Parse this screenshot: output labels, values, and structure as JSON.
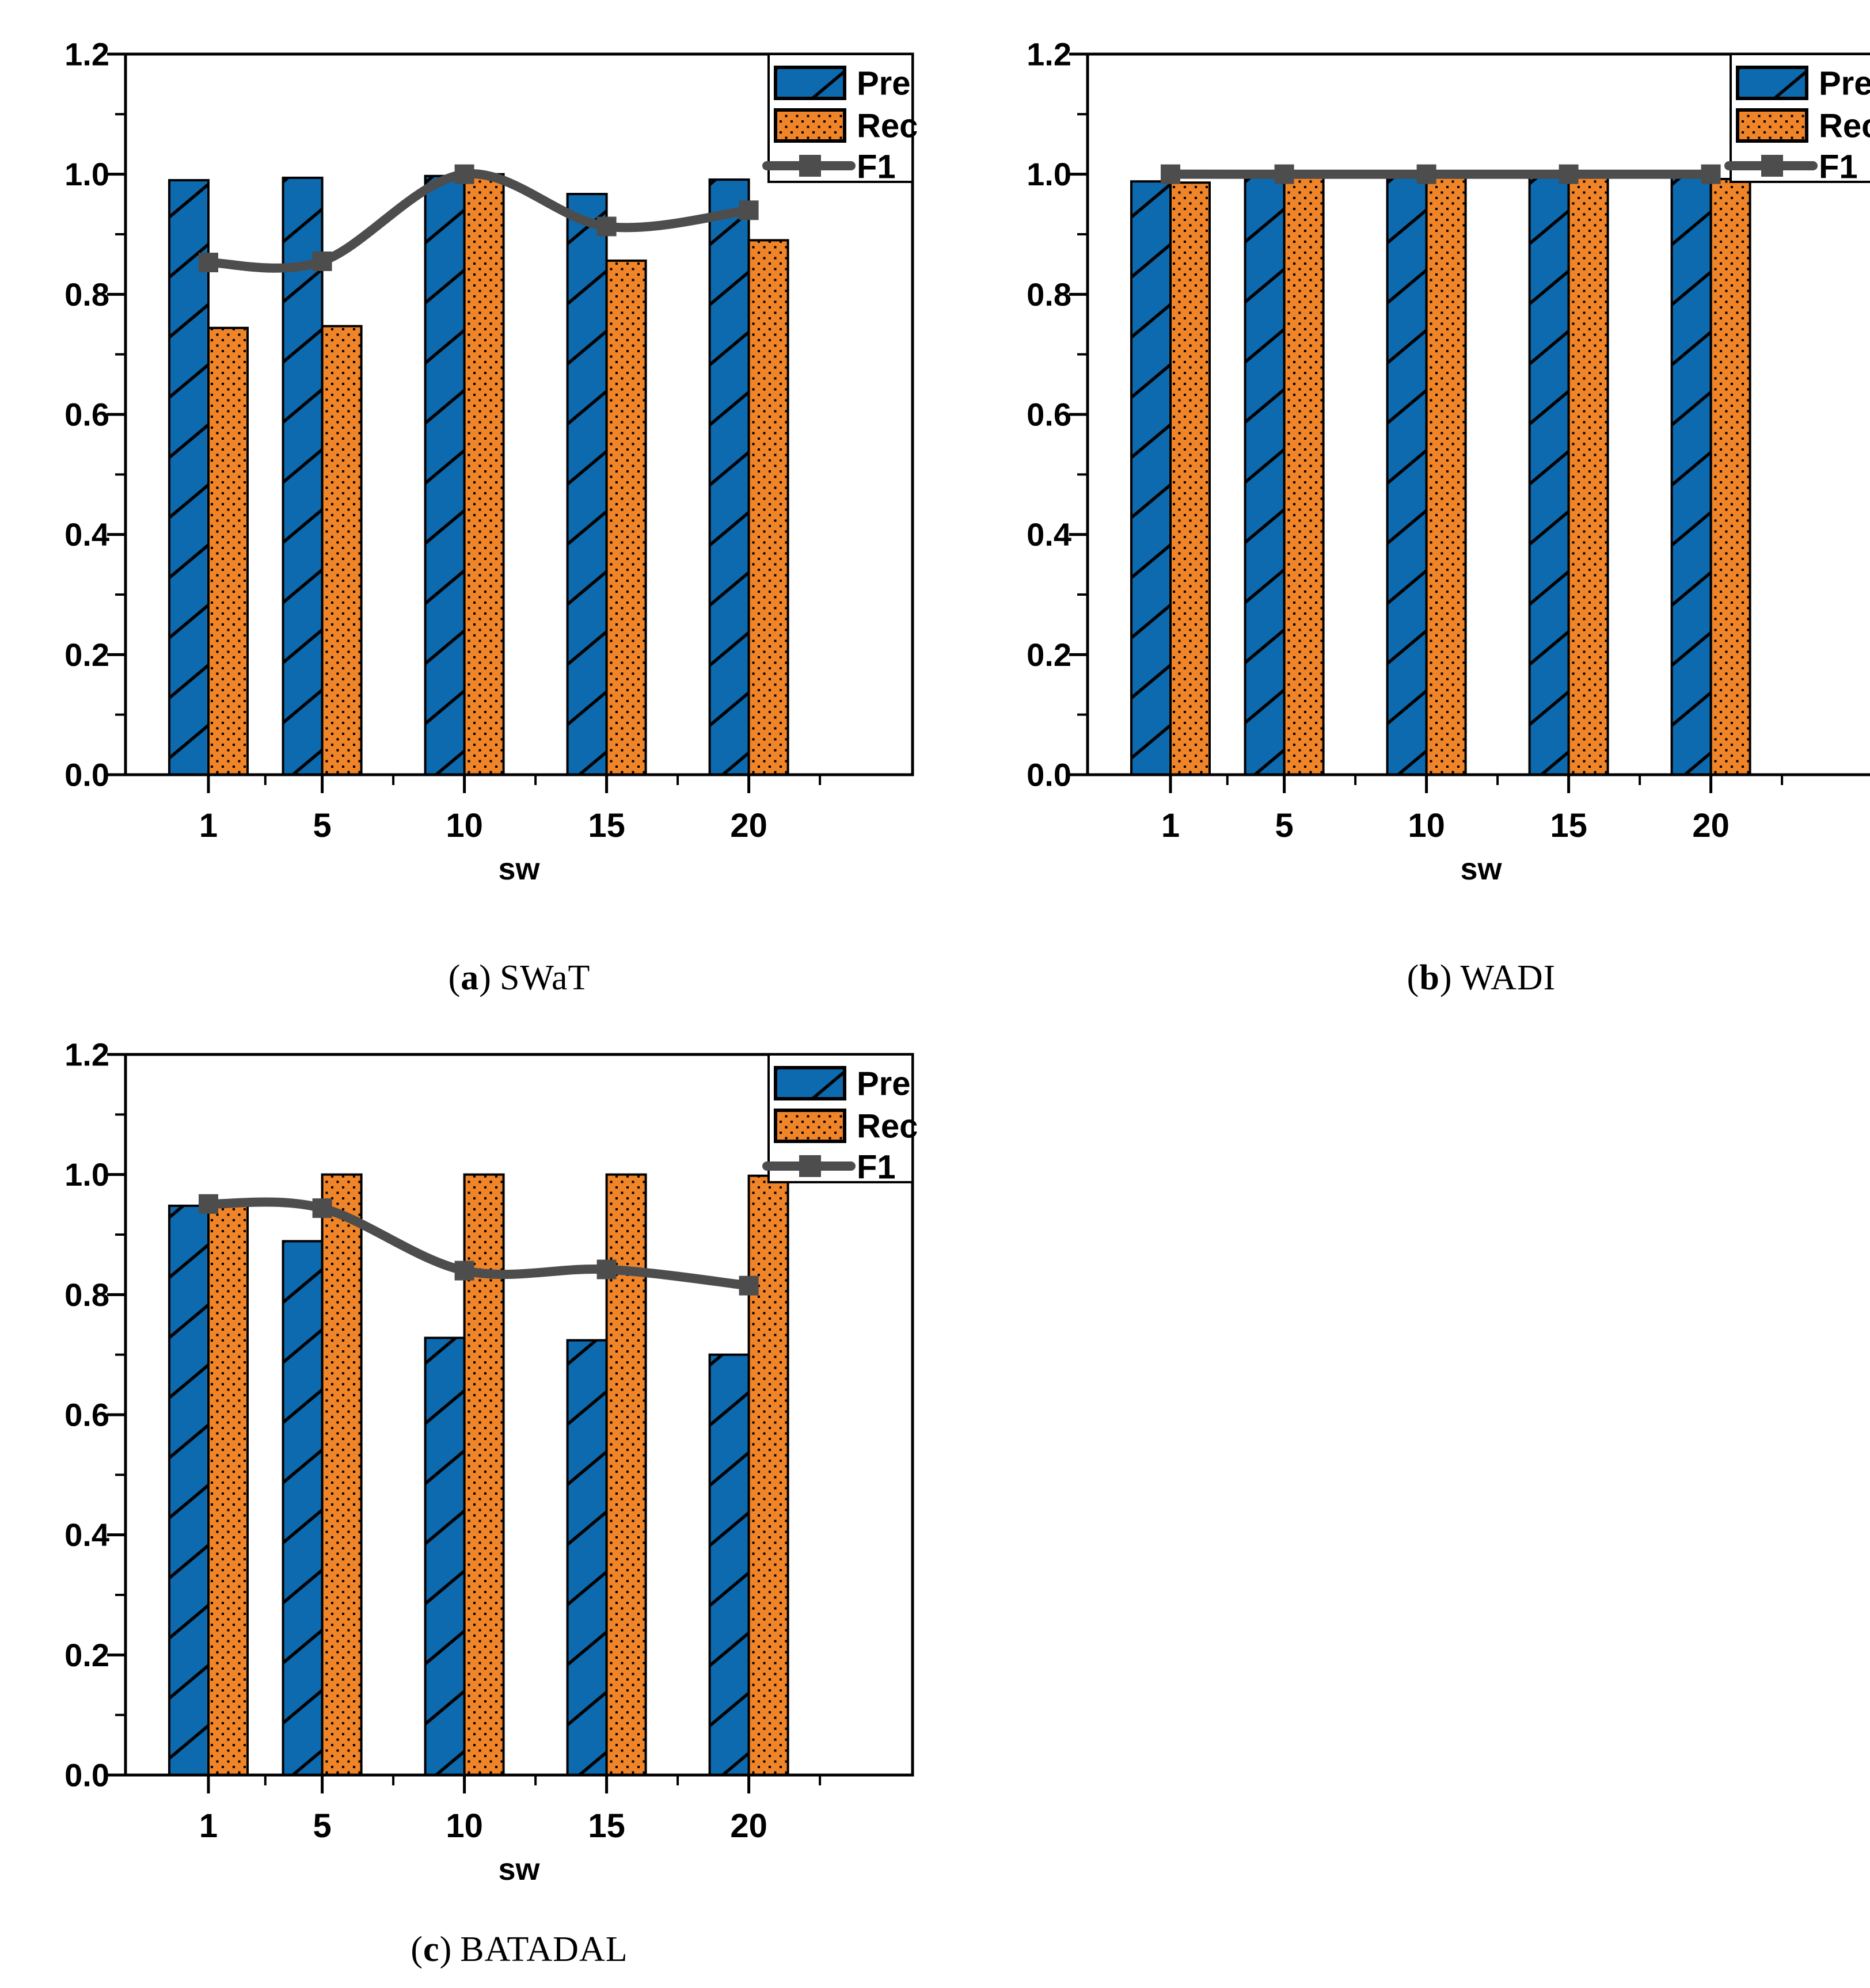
{
  "colors": {
    "pre_fill": "#0d6aae",
    "rec_fill": "#ef8428",
    "hatch_stroke": "#000000",
    "dot_color": "#000000",
    "f1_line": "#4d4d4d",
    "axis": "#000000",
    "legend_bg": "#ffffff",
    "text": "#000000"
  },
  "chart_data": [
    {
      "type": "bar",
      "caption": {
        "open": "(",
        "letter": "a",
        "close": ")",
        "label": "SWaT"
      },
      "xlabel": "sw",
      "ylabel": "",
      "ylim": [
        0.0,
        1.2
      ],
      "ytick_labels": [
        "0.0",
        "0.2",
        "0.4",
        "0.6",
        "0.8",
        "1.0",
        "1.2"
      ],
      "yminor": [
        0.1,
        0.3,
        0.5,
        0.7,
        0.9,
        1.1
      ],
      "categories": [
        1,
        5,
        10,
        15,
        20
      ],
      "xminor": [
        3,
        7.5,
        12.5,
        17.5,
        22.5
      ],
      "grid": false,
      "legend_position": "top-right",
      "series": [
        {
          "name": "Pre",
          "kind": "bar",
          "pattern": "diagonal-hatch",
          "values": [
            0.99,
            0.994,
            0.997,
            0.967,
            0.991
          ]
        },
        {
          "name": "Rec",
          "kind": "bar",
          "pattern": "dots",
          "values": [
            0.744,
            0.747,
            1.0,
            0.856,
            0.89
          ]
        },
        {
          "name": "F1",
          "kind": "line",
          "marker": "square",
          "values": [
            0.853,
            0.855,
            1.0,
            0.913,
            0.94
          ]
        }
      ]
    },
    {
      "type": "bar",
      "caption": {
        "open": "(",
        "letter": "b",
        "close": ")",
        "label": "WADI"
      },
      "xlabel": "sw",
      "ylabel": "",
      "ylim": [
        0.0,
        1.2
      ],
      "ytick_labels": [
        "0.0",
        "0.2",
        "0.4",
        "0.6",
        "0.8",
        "1.0",
        "1.2"
      ],
      "yminor": [
        0.1,
        0.3,
        0.5,
        0.7,
        0.9,
        1.1
      ],
      "categories": [
        1,
        5,
        10,
        15,
        20
      ],
      "xminor": [
        3,
        7.5,
        12.5,
        17.5,
        22.5
      ],
      "grid": false,
      "legend_position": "top-right",
      "series": [
        {
          "name": "Pre",
          "kind": "bar",
          "pattern": "diagonal-hatch",
          "values": [
            0.988,
            0.996,
            0.996,
            0.996,
            0.997
          ]
        },
        {
          "name": "Rec",
          "kind": "bar",
          "pattern": "dots",
          "values": [
            0.986,
            0.995,
            0.995,
            0.997,
            0.992
          ]
        },
        {
          "name": "F1",
          "kind": "line",
          "marker": "square",
          "values": [
            1.0,
            1.0,
            1.0,
            1.0,
            1.0
          ]
        }
      ]
    },
    {
      "type": "bar",
      "caption": {
        "open": "(",
        "letter": "c",
        "close": ")",
        "label": "BATADAL"
      },
      "xlabel": "sw",
      "ylabel": "",
      "ylim": [
        0.0,
        1.2
      ],
      "ytick_labels": [
        "0.0",
        "0.2",
        "0.4",
        "0.6",
        "0.8",
        "1.0",
        "1.2"
      ],
      "yminor": [
        0.1,
        0.3,
        0.5,
        0.7,
        0.9,
        1.1
      ],
      "categories": [
        1,
        5,
        10,
        15,
        20
      ],
      "xminor": [
        3,
        7.5,
        12.5,
        17.5,
        22.5
      ],
      "grid": false,
      "legend_position": "top-right",
      "series": [
        {
          "name": "Pre",
          "kind": "bar",
          "pattern": "diagonal-hatch",
          "values": [
            0.948,
            0.889,
            0.728,
            0.724,
            0.7
          ]
        },
        {
          "name": "Rec",
          "kind": "bar",
          "pattern": "dots",
          "values": [
            0.954,
            1.0,
            1.0,
            1.0,
            0.998
          ]
        },
        {
          "name": "F1",
          "kind": "line",
          "marker": "square",
          "values": [
            0.951,
            0.944,
            0.84,
            0.842,
            0.815
          ]
        }
      ]
    }
  ]
}
